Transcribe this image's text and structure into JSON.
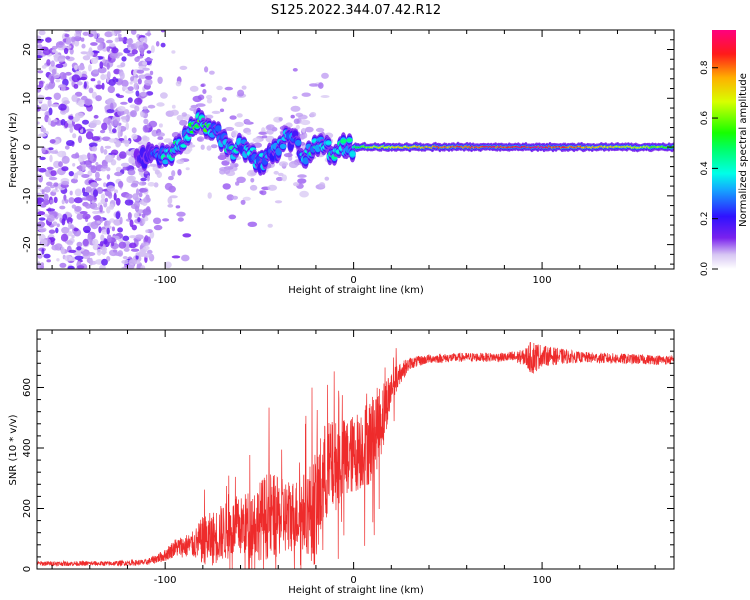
{
  "title": "S125.2022.344.07.42.R12",
  "colors": {
    "snr_line": "#ee2b2b",
    "axis": "#000000"
  },
  "chart_data": [
    {
      "type": "heatmap",
      "name": "spectrogram",
      "xlabel": "Height of straight line (km)",
      "ylabel": "Frequency (Hz)",
      "xlim": [
        -168,
        170
      ],
      "ylim": [
        -25,
        24
      ],
      "x_ticks": [
        -100,
        0,
        100
      ],
      "x_tick_labels": [
        "-100",
        "0",
        "100"
      ],
      "y_ticks": [
        -20,
        -10,
        0,
        10,
        20
      ],
      "y_tick_labels": [
        "-20",
        "-10",
        "0",
        "10",
        "20"
      ],
      "colorbar": {
        "label": "Normalized spectral amplitude",
        "range": [
          0,
          0.95
        ],
        "ticks": [
          0,
          0.2,
          0.4,
          0.6,
          0.8
        ],
        "tick_labels": [
          "0.0",
          "0.2",
          "0.4",
          "0.6",
          "0.8"
        ],
        "colormap": "rainbow"
      },
      "signal_track": {
        "description_x": [
          -115,
          -108,
          -100,
          -96,
          -90,
          -85,
          -80,
          -75,
          -70,
          -65,
          -60,
          -55,
          -50,
          -45,
          -40,
          -35,
          -30,
          -25,
          -20,
          -15,
          -10,
          -5,
          0,
          10,
          30,
          60,
          100,
          140,
          170
        ],
        "center_freq": [
          -2,
          -2,
          -2,
          -1,
          1,
          4,
          6,
          3,
          2,
          -1,
          0,
          -1,
          -3,
          -2,
          -1,
          2,
          1,
          -2,
          1,
          0,
          -1,
          0,
          0,
          0,
          0,
          0,
          0,
          0,
          0
        ],
        "peak_amplitude": [
          0.15,
          0.2,
          0.4,
          0.5,
          0.35,
          0.55,
          0.6,
          0.4,
          0.35,
          0.45,
          0.3,
          0.4,
          0.35,
          0.3,
          0.35,
          0.3,
          0.25,
          0.4,
          0.5,
          0.45,
          0.4,
          0.45,
          0.5,
          0.7,
          0.8,
          0.9,
          0.95,
          0.75,
          0.6
        ]
      },
      "noise_region_x": [
        -168,
        -108
      ]
    },
    {
      "type": "line",
      "name": "snr",
      "xlabel": "Height of straight line (km)",
      "ylabel": "SNR (10 * v/v)",
      "xlim": [
        -168,
        170
      ],
      "ylim": [
        0,
        790
      ],
      "x_ticks": [
        -100,
        0,
        100
      ],
      "x_tick_labels": [
        "-100",
        "0",
        "100"
      ],
      "y_ticks": [
        0,
        200,
        400,
        600
      ],
      "y_tick_labels": [
        "0",
        "200",
        "400",
        "600"
      ],
      "envelope": {
        "x": [
          -168,
          -130,
          -110,
          -100,
          -95,
          -85,
          -80,
          -75,
          -70,
          -60,
          -50,
          -45,
          -40,
          -30,
          -25,
          -20,
          -15,
          -10,
          0,
          10,
          15,
          20,
          25,
          30,
          40,
          60,
          80,
          90,
          95,
          100,
          120,
          140,
          170
        ],
        "mean": [
          18,
          18,
          22,
          45,
          70,
          80,
          95,
          100,
          120,
          140,
          160,
          180,
          170,
          180,
          190,
          200,
          320,
          340,
          380,
          430,
          500,
          600,
          650,
          680,
          695,
          700,
          700,
          700,
          700,
          705,
          700,
          695,
          690
        ],
        "spread": [
          8,
          8,
          10,
          20,
          30,
          45,
          80,
          90,
          95,
          100,
          130,
          150,
          130,
          120,
          140,
          200,
          170,
          150,
          130,
          150,
          120,
          60,
          35,
          20,
          15,
          15,
          15,
          25,
          60,
          35,
          18,
          18,
          15
        ]
      }
    }
  ]
}
